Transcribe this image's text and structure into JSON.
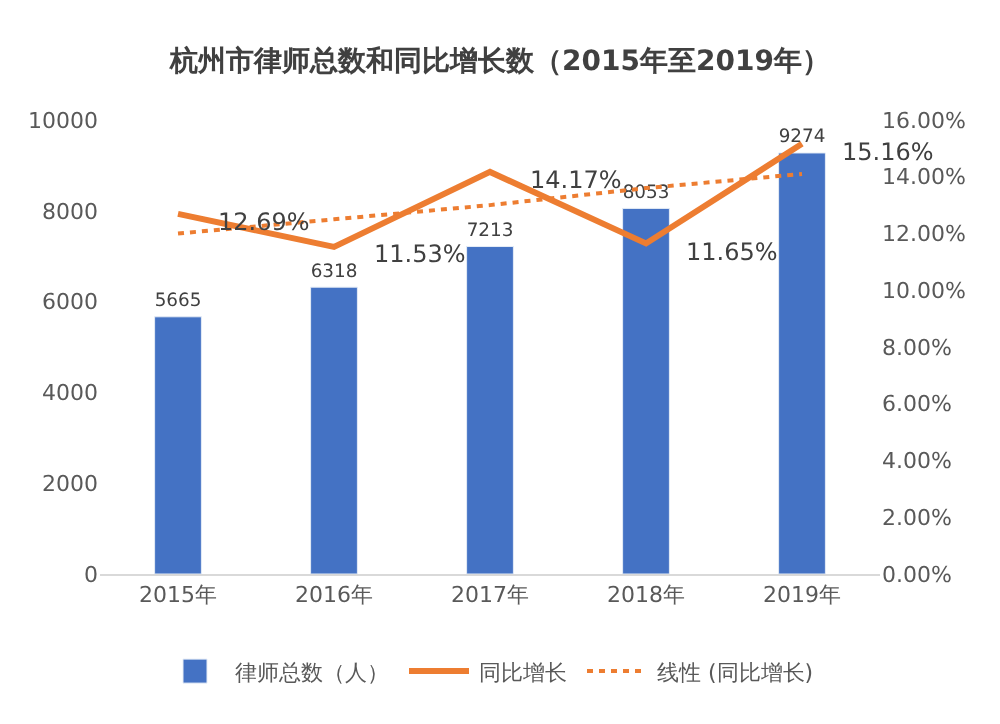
{
  "chart_data": {
    "type": "bar",
    "title": "杭州市律师总数和同比增长数（2015年至2019年）",
    "categories": [
      "2015年",
      "2016年",
      "2017年",
      "2018年",
      "2019年"
    ],
    "series": [
      {
        "name": "律师总数（人）",
        "color": "#4472c4",
        "values": [
          5665,
          6318,
          7213,
          8053,
          9274
        ],
        "data_labels": true
      },
      {
        "name": "同比增长",
        "type": "line",
        "axis": "y2",
        "color": "#ed7d31",
        "values": [
          12.69,
          11.53,
          14.17,
          11.65,
          15.16
        ],
        "value_labels": [
          "12.69%",
          "11.53%",
          "14.17%",
          "11.65%",
          "15.16%"
        ],
        "line_style": "solid",
        "marker": "none"
      },
      {
        "name": "线性 (同比增长)",
        "type": "line",
        "axis": "y2",
        "color": "#ed7d31",
        "values": [
          12.0,
          12.5,
          13.0,
          13.6,
          14.1
        ],
        "line_style": "dotted",
        "marker": "none"
      }
    ],
    "ylim": [
      0,
      10000
    ],
    "yticks": [
      0,
      2000,
      4000,
      6000,
      8000,
      10000
    ],
    "y2lim": [
      0,
      16
    ],
    "y2ticks": [
      {
        "value": 0,
        "label": "0.00%"
      },
      {
        "value": 2,
        "label": "2.00%"
      },
      {
        "value": 4,
        "label": "4.00%"
      },
      {
        "value": 6,
        "label": "6.00%"
      },
      {
        "value": 8,
        "label": "8.00%"
      },
      {
        "value": 10,
        "label": "10.00%"
      },
      {
        "value": 12,
        "label": "12.00%"
      },
      {
        "value": 14,
        "label": "14.00%"
      },
      {
        "value": 16,
        "label": "16.00%"
      }
    ],
    "legend": "bottom"
  }
}
